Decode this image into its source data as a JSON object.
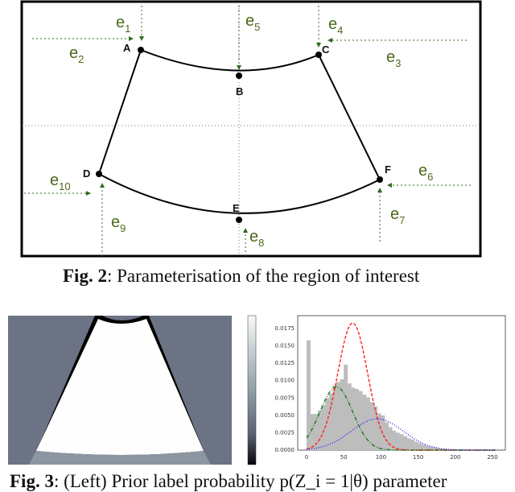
{
  "fig2": {
    "caption_label": "Fig. 2",
    "caption_text": ": Parameterisation of the region of interest",
    "points": [
      "A",
      "B",
      "C",
      "D",
      "E",
      "F"
    ],
    "params": [
      "e1",
      "e2",
      "e3",
      "e4",
      "e5",
      "e6",
      "e7",
      "e8",
      "e9",
      "e10"
    ],
    "arrow_color": "#2e6b1e"
  },
  "fig3": {
    "caption_label": "Fig. 3",
    "caption_text": ": (Left) Prior label probability p(Z_i = 1|θ) parameter",
    "heatmap": {
      "colormap": "bone",
      "background_value": "mid-gray",
      "region_value": "white"
    }
  },
  "chart_data": {
    "type": "bar",
    "title": "",
    "xlabel": "",
    "ylabel": "",
    "xlim": [
      0,
      255
    ],
    "ylim": [
      0,
      0.0185
    ],
    "xticks": [
      "0",
      "50",
      "100",
      "150",
      "200",
      "250"
    ],
    "yticks": [
      "0.0000",
      "0.0025",
      "0.0050",
      "0.0075",
      "0.0100",
      "0.0125",
      "0.0150",
      "0.0175"
    ],
    "bin_width": 5,
    "histogram": [
      0.0158,
      0.0052,
      0.0052,
      0.0057,
      0.0065,
      0.0075,
      0.0082,
      0.0093,
      0.0098,
      0.0102,
      0.0123,
      0.0096,
      0.009,
      0.0088,
      0.0085,
      0.008,
      0.0076,
      0.0069,
      0.0063,
      0.0053,
      0.005,
      0.004,
      0.0033,
      0.0028,
      0.0025,
      0.0023,
      0.002,
      0.0017,
      0.0015,
      0.0012,
      0.001,
      0.0008,
      0.0006,
      0.0005,
      0.0004,
      0.0003,
      0.0002,
      0.0002,
      0.0001,
      0.0001,
      0.0001,
      0.0001,
      0,
      0,
      0,
      0,
      0,
      0,
      0,
      0,
      0
    ],
    "histogram_color": "#bdbdbd",
    "curves": [
      {
        "style": "dashed",
        "color": "#ff2020",
        "mean": 62,
        "sd": 20,
        "peak": 0.0183
      },
      {
        "style": "dash-dot",
        "color": "#1e7a1e",
        "mean": 40,
        "sd": 22,
        "peak": 0.0091
      },
      {
        "style": "dotted",
        "color": "#2020ff",
        "mean": 95,
        "sd": 35,
        "peak": 0.0045
      }
    ]
  }
}
